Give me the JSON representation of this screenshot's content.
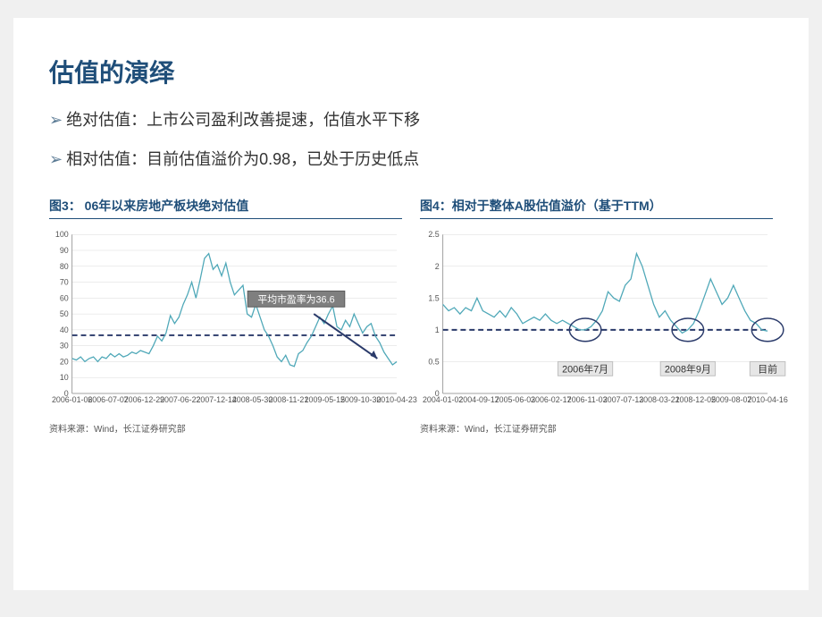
{
  "colors": {
    "title": "#1f4e79",
    "bullet_arrow": "#5a7a94",
    "bullet_text": "#333333",
    "chart_title": "#1f4e79",
    "rule": "#1f4e79",
    "line_series": "#4fa8b8",
    "dashed_ref": "#2a3a6a",
    "grid": "#d9d9d9",
    "annot_bg": "#7f7f7f",
    "annot_border": "#5a5a5a",
    "arrow": "#2a3a6a",
    "circle_stroke": "#2a3a6a",
    "label_box_bg": "#e6e6e6",
    "label_box_border": "#bfbfbf"
  },
  "title": "估值的演绎",
  "bullets": [
    {
      "arrow": "➢",
      "text": "绝对估值：上市公司盈利改善提速，估值水平下移"
    },
    {
      "arrow": "➢",
      "text": "相对估值：目前估值溢价为0.98，已处于历史低点"
    }
  ],
  "chart3": {
    "title": "图3：  06年以来房地产板块绝对估值",
    "type": "line",
    "ylim": [
      0,
      100
    ],
    "yticks": [
      0,
      10,
      20,
      30,
      40,
      50,
      60,
      70,
      80,
      90,
      100
    ],
    "ref_line_y": 36.6,
    "annotation": "平均市盈率为36.6",
    "x_labels": [
      "2006-01-06",
      "2006-07-07",
      "2006-12-29",
      "2007-06-22",
      "2007-12-14",
      "2008-05-30",
      "2008-11-21",
      "2009-05-15",
      "2009-10-30",
      "2010-04-23"
    ],
    "series": [
      22,
      21,
      23,
      20,
      22,
      23,
      20,
      23,
      22,
      25,
      23,
      25,
      23,
      24,
      26,
      25,
      27,
      26,
      25,
      30,
      36,
      33,
      38,
      49,
      44,
      48,
      56,
      62,
      70,
      60,
      72,
      85,
      88,
      78,
      81,
      74,
      82,
      70,
      62,
      65,
      68,
      50,
      48,
      56,
      48,
      40,
      36,
      30,
      23,
      20,
      24,
      18,
      17,
      25,
      27,
      32,
      36,
      42,
      48,
      44,
      50,
      55,
      42,
      40,
      46,
      42,
      50,
      44,
      38,
      42,
      44,
      36,
      32,
      26,
      22,
      18,
      20
    ],
    "source": "资料来源：Wind，长江证券研究部"
  },
  "chart4": {
    "title": "图4：相对于整体A股估值溢价（基于TTM）",
    "type": "line",
    "ylim": [
      0,
      2.5
    ],
    "yticks": [
      0,
      0.5,
      1,
      1.5,
      2,
      2.5
    ],
    "ref_line_y": 1.0,
    "x_labels": [
      "2004-01-02",
      "2004-09-17",
      "2005-06-03",
      "2006-02-17",
      "2006-11-03",
      "2007-07-13",
      "2008-03-21",
      "2008-12-05",
      "2009-08-07",
      "2010-04-16"
    ],
    "series": [
      1.4,
      1.3,
      1.35,
      1.25,
      1.35,
      1.3,
      1.5,
      1.3,
      1.25,
      1.2,
      1.3,
      1.2,
      1.35,
      1.25,
      1.1,
      1.15,
      1.2,
      1.15,
      1.25,
      1.15,
      1.1,
      1.15,
      1.1,
      1.05,
      1.0,
      1.0,
      1.05,
      1.15,
      1.3,
      1.6,
      1.5,
      1.45,
      1.7,
      1.8,
      2.2,
      2.0,
      1.7,
      1.4,
      1.2,
      1.3,
      1.15,
      1.05,
      0.95,
      1.0,
      1.1,
      1.3,
      1.55,
      1.8,
      1.6,
      1.4,
      1.5,
      1.7,
      1.5,
      1.3,
      1.15,
      1.1,
      1.0,
      0.98
    ],
    "circles": [
      {
        "idx": 25,
        "label": "2006年7月"
      },
      {
        "idx": 43,
        "label": "2008年9月"
      },
      {
        "idx": 57,
        "label": "目前"
      }
    ],
    "source": "资料来源：Wind，长江证券研究部"
  }
}
